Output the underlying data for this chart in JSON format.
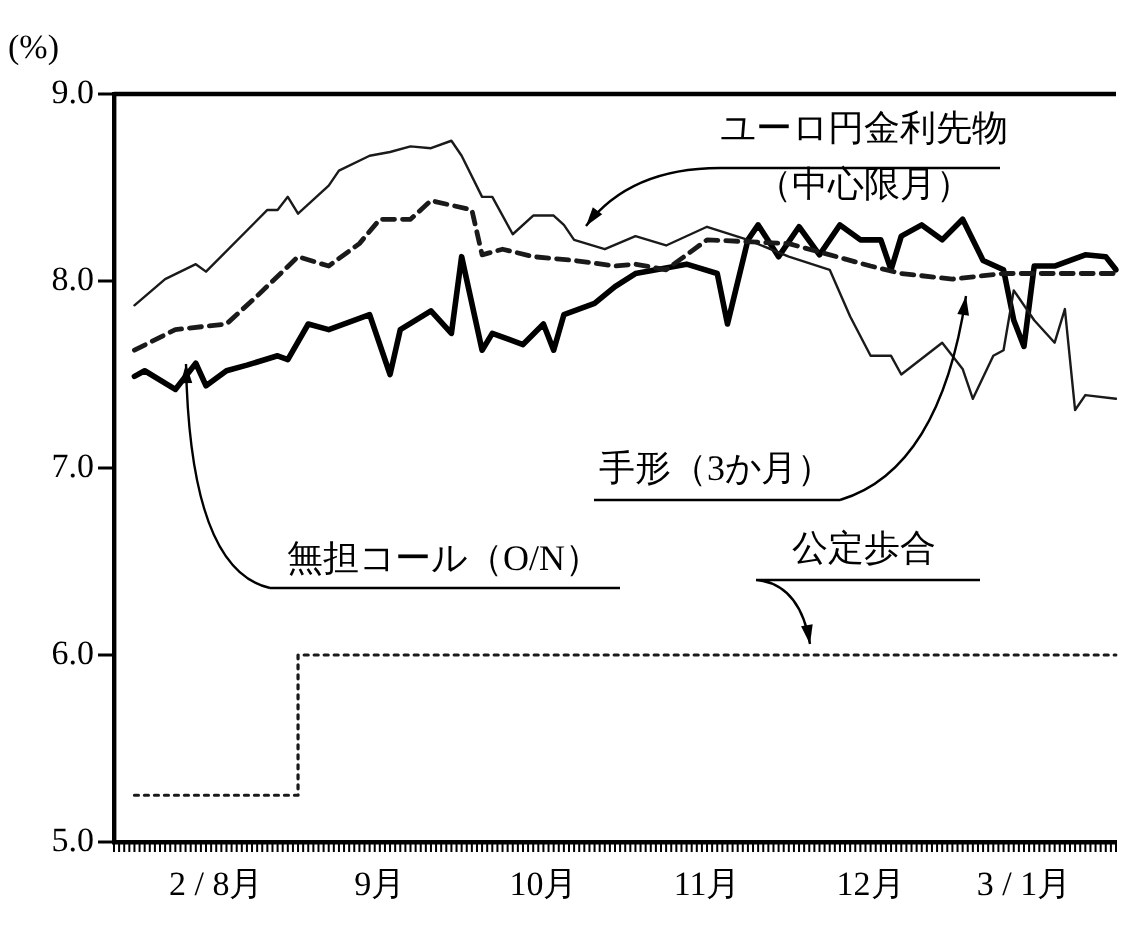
{
  "chart_data": {
    "type": "line",
    "ylabel": "(%)",
    "ylim": [
      5,
      9
    ],
    "categories": [
      null,
      null,
      null,
      null,
      null,
      null,
      null,
      null,
      null,
      null,
      "2 / 8月",
      null,
      null,
      null,
      null,
      null,
      null,
      null,
      null,
      null,
      null,
      null,
      null,
      null,
      null,
      null,
      "9月",
      null,
      null,
      null,
      null,
      null,
      null,
      null,
      null,
      null,
      null,
      null,
      null,
      null,
      null,
      null,
      "10月",
      null,
      null,
      null,
      null,
      null,
      null,
      null,
      null,
      null,
      null,
      null,
      null,
      null,
      null,
      null,
      "11月",
      null,
      null,
      null,
      null,
      null,
      null,
      null,
      null,
      null,
      null,
      null,
      null,
      null,
      null,
      null,
      "12月",
      null,
      null,
      null,
      null,
      null,
      null,
      null,
      null,
      null,
      null,
      null,
      null,
      null,
      null,
      "3 / 1月",
      null,
      null,
      null,
      null,
      null,
      null,
      null,
      null,
      null
    ],
    "yticks": [
      {
        "value": 5,
        "label": "5.0"
      },
      {
        "value": 6,
        "label": "6.0"
      },
      {
        "value": 7,
        "label": "7.0"
      },
      {
        "value": 8,
        "label": "8.0"
      },
      {
        "value": 9,
        "label": "9.0"
      }
    ],
    "grid": false,
    "legend": false,
    "marker": "none",
    "series": [
      {
        "name": "ユーロ円金利先物（中心限月）",
        "color": "#1a1a1a",
        "line_style": "solid",
        "values": [
          null,
          null,
          7.87,
          null,
          null,
          8.01,
          null,
          null,
          8.09,
          8.05,
          null,
          null,
          null,
          null,
          null,
          8.38,
          8.38,
          8.45,
          8.36,
          null,
          null,
          8.51,
          8.59,
          null,
          null,
          8.67,
          null,
          8.69,
          null,
          8.72,
          null,
          8.71,
          null,
          8.75,
          8.67,
          null,
          8.45,
          8.45,
          null,
          8.25,
          null,
          8.35,
          null,
          8.35,
          8.3,
          8.22,
          null,
          null,
          8.17,
          null,
          null,
          8.24,
          null,
          null,
          8.19,
          null,
          null,
          null,
          8.29,
          null,
          null,
          null,
          8.22,
          null,
          null,
          null,
          8.13,
          null,
          null,
          null,
          8.06,
          null,
          7.81,
          null,
          7.6,
          null,
          7.6,
          7.5,
          null,
          null,
          null,
          7.67,
          null,
          7.53,
          7.37,
          null,
          7.6,
          7.63,
          7.95,
          null,
          7.79,
          null,
          7.67,
          7.85,
          7.31,
          7.39,
          null,
          null,
          7.37
        ]
      },
      {
        "name": "手形（3か月）",
        "color": "#1a1a1a",
        "line_style": "dashed",
        "values": [
          null,
          null,
          7.63,
          null,
          null,
          null,
          7.74,
          null,
          null,
          null,
          null,
          7.77,
          null,
          null,
          7.92,
          null,
          null,
          null,
          8.13,
          null,
          null,
          8.08,
          null,
          null,
          8.2,
          null,
          8.33,
          null,
          null,
          8.33,
          null,
          8.43,
          null,
          null,
          null,
          8.38,
          8.14,
          null,
          8.17,
          null,
          null,
          8.13,
          null,
          null,
          null,
          8.11,
          null,
          null,
          null,
          8.08,
          null,
          8.09,
          null,
          null,
          8.06,
          null,
          null,
          null,
          8.22,
          null,
          null,
          null,
          null,
          null,
          null,
          null,
          8.2,
          null,
          null,
          null,
          null,
          null,
          null,
          null,
          8.08,
          null,
          null,
          8.04,
          null,
          null,
          null,
          null,
          8.01,
          null,
          null,
          null,
          null,
          8.04,
          null,
          null,
          8.04,
          null,
          null,
          null,
          null,
          null,
          null,
          null,
          8.04
        ]
      },
      {
        "name": "無担コール（O/N）",
        "color": "#000000",
        "line_style": "solid",
        "values": [
          null,
          null,
          7.49,
          7.52,
          null,
          null,
          7.42,
          null,
          7.56,
          7.44,
          null,
          7.52,
          null,
          7.55,
          null,
          null,
          7.6,
          7.58,
          null,
          7.77,
          null,
          7.74,
          null,
          null,
          null,
          7.82,
          null,
          7.5,
          7.74,
          null,
          null,
          7.84,
          null,
          7.72,
          8.13,
          null,
          7.63,
          7.72,
          null,
          null,
          7.66,
          null,
          7.77,
          7.63,
          7.82,
          null,
          null,
          7.88,
          null,
          7.97,
          null,
          8.04,
          null,
          null,
          null,
          null,
          8.09,
          null,
          null,
          8.04,
          7.77,
          null,
          8.22,
          8.3,
          null,
          8.13,
          null,
          8.29,
          null,
          8.14,
          null,
          8.3,
          null,
          8.22,
          null,
          8.22,
          8.06,
          8.24,
          null,
          8.3,
          null,
          8.22,
          null,
          8.33,
          null,
          8.11,
          null,
          8.06,
          7.79,
          7.65,
          8.08,
          null,
          8.08,
          null,
          null,
          8.14,
          null,
          8.13,
          8.06
        ]
      },
      {
        "name": "公定歩合",
        "color": "#1a1a1a",
        "type": "step",
        "line_style": "dotted",
        "values": [
          null,
          null,
          5.25,
          null,
          null,
          null,
          null,
          null,
          null,
          null,
          null,
          null,
          null,
          null,
          null,
          null,
          null,
          null,
          6.0,
          null,
          null,
          null,
          null,
          null,
          null,
          null,
          null,
          null,
          null,
          null,
          null,
          null,
          null,
          null,
          null,
          null,
          null,
          null,
          null,
          null,
          null,
          null,
          null,
          null,
          null,
          null,
          null,
          null,
          null,
          null,
          null,
          null,
          null,
          null,
          null,
          null,
          null,
          null,
          null,
          null,
          null,
          null,
          null,
          null,
          null,
          null,
          null,
          null,
          null,
          null,
          null,
          null,
          null,
          null,
          null,
          null,
          null,
          null,
          null,
          null,
          null,
          null,
          null,
          null,
          null,
          null,
          null,
          null,
          null,
          null,
          null,
          null,
          null,
          null,
          null,
          null,
          null,
          null,
          6.0
        ]
      }
    ]
  }
}
